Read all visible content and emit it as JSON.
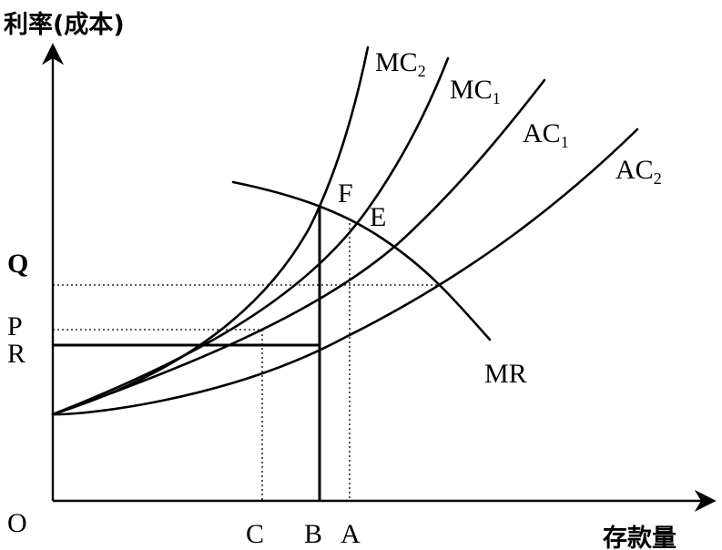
{
  "axes": {
    "y_label": "利率(成本)",
    "x_label": "存款量",
    "origin_label": "O"
  },
  "y_ticks": {
    "q": "Q",
    "p": "P",
    "r": "R"
  },
  "x_ticks": {
    "c": "C",
    "b": "B",
    "a": "A"
  },
  "curves": {
    "mc2": {
      "base": "MC",
      "sub": "2"
    },
    "mc1": {
      "base": "MC",
      "sub": "1"
    },
    "ac1": {
      "base": "AC",
      "sub": "1"
    },
    "ac2": {
      "base": "AC",
      "sub": "2"
    },
    "mr": {
      "base": "MR"
    }
  },
  "points": {
    "f": "F",
    "e": "E"
  }
}
